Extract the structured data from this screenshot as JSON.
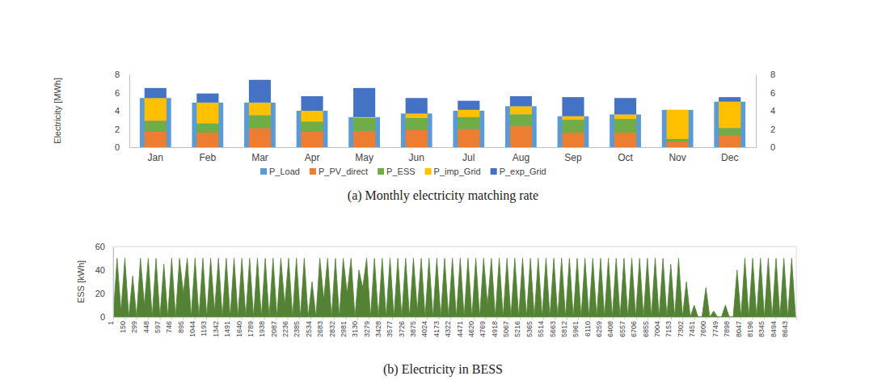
{
  "chart_data": [
    {
      "type": "bar",
      "title": "(a) Monthly electricity matching rate",
      "y_label": "Electricity  [MWh]",
      "categories": [
        "Jan",
        "Feb",
        "Mar",
        "Apr",
        "May",
        "Jun",
        "Jul",
        "Aug",
        "Sep",
        "Oct",
        "Nov",
        "Dec"
      ],
      "series": [
        {
          "name": "P_Load",
          "color": "#5b9bd5",
          "type": "bar",
          "axis": "y2",
          "values": [
            5.4,
            4.9,
            4.9,
            4.0,
            3.3,
            3.7,
            4.0,
            4.5,
            3.4,
            3.6,
            4.1,
            5.0
          ]
        },
        {
          "name": "P_PV_direct",
          "color": "#ed7d31",
          "values": [
            1.7,
            1.6,
            2.1,
            1.7,
            1.8,
            1.9,
            2.0,
            2.3,
            1.6,
            1.6,
            0.6,
            1.3
          ]
        },
        {
          "name": "P_ESS",
          "color": "#70ad47",
          "values": [
            1.2,
            1.0,
            1.4,
            1.1,
            1.4,
            1.3,
            1.3,
            1.3,
            1.4,
            1.5,
            0.3,
            0.8
          ]
        },
        {
          "name": "P_imp_Grid",
          "color": "#ffc000",
          "values": [
            2.5,
            2.3,
            1.4,
            1.2,
            0.1,
            0.5,
            0.8,
            0.9,
            0.4,
            0.5,
            3.2,
            2.9
          ]
        },
        {
          "name": "P_exp_Grid",
          "color": "#4472c4",
          "values": [
            1.1,
            1.0,
            2.5,
            1.6,
            3.2,
            1.7,
            1.0,
            1.1,
            2.1,
            1.8,
            0.0,
            0.5
          ]
        }
      ],
      "stacked": true,
      "legend": "bottom",
      "grid": false,
      "ylim": [
        0,
        8
      ],
      "yticks": [
        0,
        2,
        4,
        6,
        8
      ],
      "y2lim": [
        0,
        8
      ],
      "y2ticks": [
        0,
        2,
        4,
        6,
        8
      ]
    },
    {
      "type": "area",
      "title": "(b) Electricity in BESS",
      "y_label": "ESS [kWh]",
      "x": [
        1,
        51,
        101,
        151,
        201,
        251,
        301,
        351,
        401,
        451,
        501,
        551,
        601,
        651,
        701,
        751,
        801,
        851,
        901,
        951,
        1001,
        1051,
        1101,
        1151,
        1201,
        1251,
        1301,
        1351,
        1401,
        1451,
        1501,
        1551,
        1601,
        1651,
        1701,
        1751,
        1801,
        1851,
        1901,
        1951,
        2001,
        2051,
        2101,
        2151,
        2201,
        2251,
        2301,
        2351,
        2401,
        2451,
        2501,
        2551,
        2601,
        2651,
        2701,
        2751,
        2801,
        2851,
        2901,
        2951,
        3001,
        3051,
        3101,
        3151,
        3201,
        3251,
        3301,
        3351,
        3401,
        3451,
        3501,
        3551,
        3601,
        3651,
        3701,
        3751,
        3801,
        3851,
        3901,
        3951,
        4001,
        4051,
        4101,
        4151,
        4201,
        4251,
        4301,
        4351,
        4401,
        4451,
        4501,
        4551,
        4601,
        4651,
        4701,
        4751,
        4801,
        4851,
        4901,
        4951,
        5001,
        5051,
        5101,
        5151,
        5201,
        5251,
        5301,
        5351,
        5401,
        5451,
        5501,
        5551,
        5601,
        5651,
        5701,
        5751,
        5801,
        5851,
        5901,
        5951,
        6001,
        6051,
        6101,
        6151,
        6201,
        6251,
        6301,
        6351,
        6401,
        6451,
        6501,
        6551,
        6601,
        6651,
        6701,
        6751,
        6801,
        6851,
        6901,
        6951,
        7001,
        7051,
        7101,
        7151,
        7201,
        7251,
        7301,
        7351,
        7401,
        7451,
        7501,
        7551,
        7601,
        7651,
        7701,
        7751,
        7801,
        7851,
        7901,
        7951,
        8001,
        8051,
        8101,
        8151,
        8201,
        8251,
        8301,
        8351,
        8401,
        8451,
        8501,
        8551,
        8601,
        8651,
        8701,
        8751
      ],
      "series": [
        {
          "name": "ESS",
          "color": "#548235",
          "values": [
            0,
            50,
            5,
            50,
            0,
            35,
            0,
            50,
            10,
            50,
            0,
            50,
            0,
            45,
            0,
            50,
            0,
            50,
            20,
            50,
            0,
            50,
            0,
            50,
            0,
            50,
            5,
            50,
            0,
            50,
            0,
            50,
            0,
            50,
            0,
            50,
            0,
            50,
            0,
            50,
            0,
            50,
            0,
            50,
            10,
            50,
            0,
            50,
            0,
            50,
            0,
            30,
            0,
            50,
            15,
            50,
            0,
            50,
            0,
            50,
            20,
            50,
            0,
            40,
            25,
            50,
            0,
            50,
            0,
            50,
            0,
            50,
            0,
            50,
            0,
            50,
            0,
            50,
            5,
            50,
            0,
            50,
            0,
            50,
            0,
            50,
            0,
            50,
            0,
            50,
            0,
            50,
            0,
            50,
            0,
            50,
            10,
            50,
            0,
            50,
            0,
            50,
            0,
            50,
            0,
            50,
            0,
            50,
            0,
            50,
            0,
            50,
            0,
            50,
            0,
            50,
            0,
            50,
            0,
            50,
            0,
            50,
            0,
            50,
            0,
            50,
            0,
            50,
            0,
            50,
            0,
            50,
            0,
            50,
            0,
            50,
            0,
            50,
            0,
            50,
            0,
            50,
            0,
            45,
            0,
            50,
            0,
            30,
            0,
            10,
            0,
            0,
            25,
            0,
            5,
            0,
            0,
            10,
            0,
            0,
            40,
            0,
            50,
            0,
            50,
            0,
            50,
            0,
            50,
            0,
            50,
            0,
            50,
            0,
            50,
            0
          ]
        }
      ],
      "grid": false,
      "xlim": [
        1,
        8760
      ],
      "xticks": [
        1,
        150,
        299,
        448,
        597,
        746,
        895,
        1044,
        1193,
        1342,
        1491,
        1640,
        1789,
        1938,
        2087,
        2236,
        2385,
        2534,
        2683,
        2832,
        2981,
        3130,
        3279,
        3428,
        3577,
        3726,
        3875,
        4024,
        4173,
        4322,
        4471,
        4620,
        4769,
        4918,
        5067,
        5216,
        5365,
        5514,
        5663,
        5812,
        5961,
        6110,
        6259,
        6408,
        6557,
        6706,
        6855,
        7004,
        7153,
        7302,
        7451,
        7600,
        7749,
        7898,
        8047,
        8196,
        8345,
        8494,
        8643
      ],
      "ylim": [
        0,
        60
      ],
      "yticks": [
        0,
        20,
        40,
        60
      ]
    }
  ]
}
